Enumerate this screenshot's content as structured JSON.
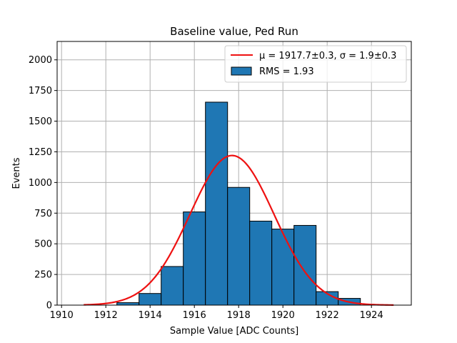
{
  "chart_data": {
    "type": "bar",
    "title": "Baseline value, Ped Run",
    "xlabel": "Sample Value [ADC Counts]",
    "ylabel": "Events",
    "xlim": [
      1909.8,
      1925.8
    ],
    "ylim": [
      0,
      2150
    ],
    "xticks": [
      1910,
      1912,
      1914,
      1916,
      1918,
      1920,
      1922,
      1924
    ],
    "yticks": [
      0,
      250,
      500,
      750,
      1000,
      1250,
      1500,
      1750,
      2000
    ],
    "grid": true,
    "legend_position": "top-right",
    "histogram": {
      "name": "RMS = 1.93",
      "color": "#1f77b4",
      "edge_color": "#000000",
      "bin_width": 1,
      "bins": [
        {
          "left": 1912.5,
          "value": 20
        },
        {
          "left": 1913.5,
          "value": 95
        },
        {
          "left": 1914.5,
          "value": 315
        },
        {
          "left": 1915.5,
          "value": 760
        },
        {
          "left": 1916.5,
          "value": 1655
        },
        {
          "left": 1917.5,
          "value": 960
        },
        {
          "left": 1918.5,
          "value": 685
        },
        {
          "left": 1919.5,
          "value": 620
        },
        {
          "left": 1920.5,
          "value": 650
        },
        {
          "left": 1921.5,
          "value": 110
        },
        {
          "left": 1922.5,
          "value": 55
        }
      ]
    },
    "fit": {
      "name_html": "μ = 1917.7±0.3, σ = 1.9±0.3",
      "color": "#ee1111",
      "mu": 1917.7,
      "sigma": 1.9,
      "amplitude": 1220,
      "x_range": [
        1911,
        1925
      ]
    }
  }
}
